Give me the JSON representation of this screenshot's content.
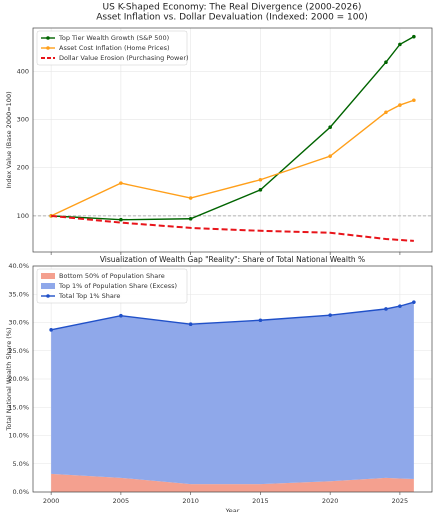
{
  "figure": {
    "title": "US K-Shaped Economy: The Real Divergence (2000-2026)",
    "subtitle": "Asset Inflation vs. Dollar Devaluation (Indexed: 2000 = 100)"
  },
  "chart_data": [
    {
      "type": "line",
      "x": [
        2000,
        2005,
        2010,
        2015,
        2020,
        2024,
        2025,
        2026
      ],
      "xlim": [
        1998.7,
        2027.3
      ],
      "xticks": [
        2000,
        2005,
        2010,
        2015,
        2020,
        2025
      ],
      "ylim": [
        25,
        490
      ],
      "yticks": [
        100,
        200,
        300,
        400
      ],
      "ylabel": "Index Value (Base 2000=100)",
      "grid": true,
      "legend": "upper left",
      "hline": {
        "value": 100,
        "color": "#999999"
      },
      "series": [
        {
          "name": "Top Tier Wealth Growth (S&P 500)",
          "color": "#006400",
          "marker": true,
          "dashed": false,
          "values": [
            100,
            92,
            94,
            154,
            284,
            419,
            456,
            472
          ]
        },
        {
          "name": "Asset Cost Inflation (Home Prices)",
          "color": "#ff9f1a",
          "marker": true,
          "dashed": false,
          "values": [
            100,
            168,
            137,
            175,
            224,
            315,
            330,
            340
          ]
        },
        {
          "name": "Dollar Value Erosion (Purchasing Power)",
          "color": "#e8141a",
          "marker": false,
          "dashed": true,
          "values": [
            100,
            86,
            75,
            69,
            65,
            52,
            50,
            48
          ]
        }
      ]
    },
    {
      "type": "stacked_area",
      "title": "Visualization of Wealth Gap \"Reality\": Share of Total National Wealth %",
      "x": [
        2000,
        2005,
        2010,
        2015,
        2020,
        2024,
        2025,
        2026
      ],
      "xlim": [
        1998.7,
        2027.3
      ],
      "xticks": [
        2000,
        2005,
        2010,
        2015,
        2020,
        2025
      ],
      "xlabel": "Year",
      "ylim": [
        0,
        40
      ],
      "yticks": [
        {
          "value": 0,
          "label": "0.0%"
        },
        {
          "value": 5,
          "label": "5.0%"
        },
        {
          "value": 10,
          "label": "10.0%"
        },
        {
          "value": 15,
          "label": "15.0%"
        },
        {
          "value": 20,
          "label": "20.0%"
        },
        {
          "value": 25,
          "label": "25.0%"
        },
        {
          "value": 30,
          "label": "30.0%"
        },
        {
          "value": 35,
          "label": "35.0%"
        },
        {
          "value": 40,
          "label": "40.0%"
        }
      ],
      "ylabel": "Total National Wealth Share (%)",
      "grid": true,
      "legend": "upper left",
      "series": [
        {
          "name": "Bottom 50% of Population Share",
          "color": "#f4a08f",
          "kind": "area",
          "values": [
            3.2,
            2.5,
            1.4,
            1.4,
            1.9,
            2.5,
            2.4,
            2.3
          ]
        },
        {
          "name": "Top 1% of Population Share (Excess)",
          "color": "#8fa8ea",
          "kind": "area",
          "values": [
            25.5,
            28.7,
            28.3,
            29.0,
            29.4,
            29.9,
            30.5,
            31.3
          ]
        },
        {
          "name": "Total Top 1% Share",
          "color": "#2050c8",
          "kind": "line",
          "values": [
            28.7,
            31.2,
            29.7,
            30.4,
            31.3,
            32.4,
            32.9,
            33.6
          ]
        }
      ]
    }
  ]
}
